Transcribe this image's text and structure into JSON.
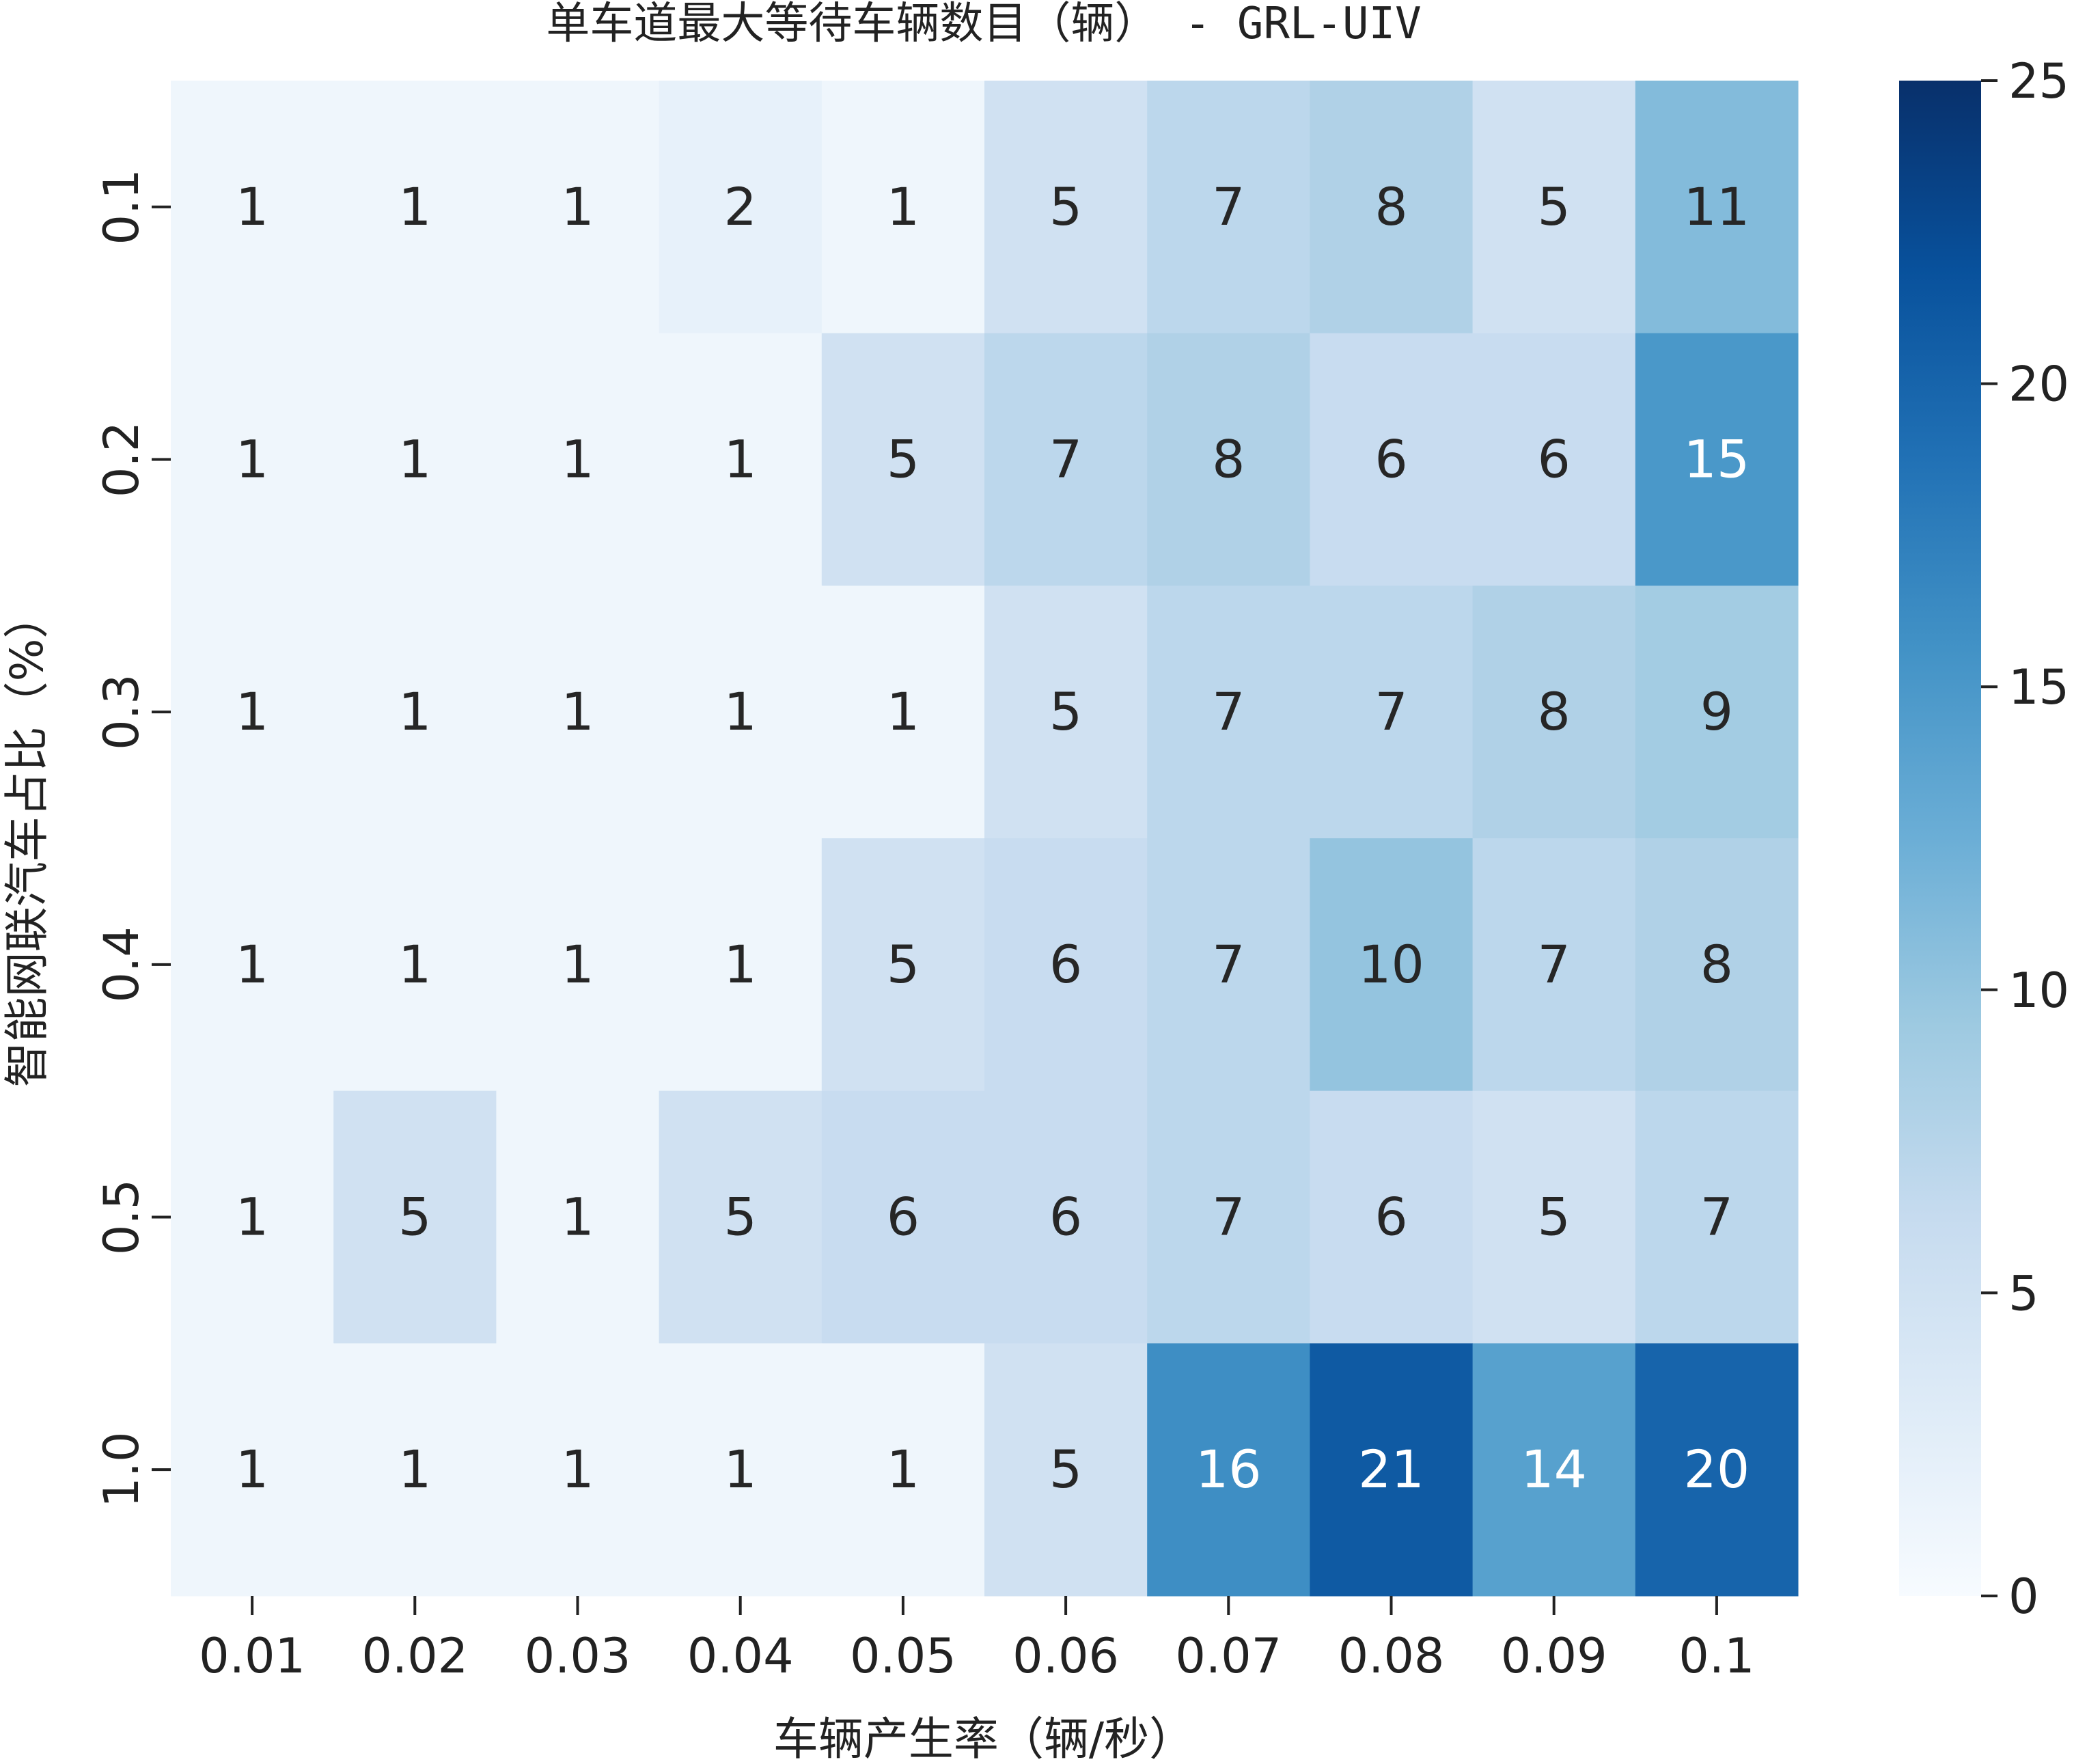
{
  "chart_data": {
    "type": "heatmap",
    "title": "单车道最大等待车辆数目（辆） - GRL-UIV",
    "xlabel": "车辆产生率（辆/秒）",
    "ylabel": "智能网联汽车占比（%）",
    "x_categories": [
      "0.01",
      "0.02",
      "0.03",
      "0.04",
      "0.05",
      "0.06",
      "0.07",
      "0.08",
      "0.09",
      "0.1"
    ],
    "y_categories": [
      "0.1",
      "0.2",
      "0.3",
      "0.4",
      "0.5",
      "1.0"
    ],
    "values": [
      [
        1,
        1,
        1,
        2,
        1,
        5,
        7,
        8,
        5,
        11
      ],
      [
        1,
        1,
        1,
        1,
        5,
        7,
        8,
        6,
        6,
        15
      ],
      [
        1,
        1,
        1,
        1,
        1,
        5,
        7,
        7,
        8,
        9
      ],
      [
        1,
        1,
        1,
        1,
        5,
        6,
        7,
        10,
        7,
        8
      ],
      [
        1,
        5,
        1,
        5,
        6,
        6,
        7,
        6,
        5,
        7
      ],
      [
        1,
        1,
        1,
        1,
        1,
        5,
        16,
        21,
        14,
        20
      ]
    ],
    "colormap": "Blues",
    "vmin": 0,
    "vmax": 25,
    "colorbar_ticks": [
      "0",
      "5",
      "10",
      "15",
      "20",
      "25"
    ],
    "annotated": true,
    "grid": false
  }
}
